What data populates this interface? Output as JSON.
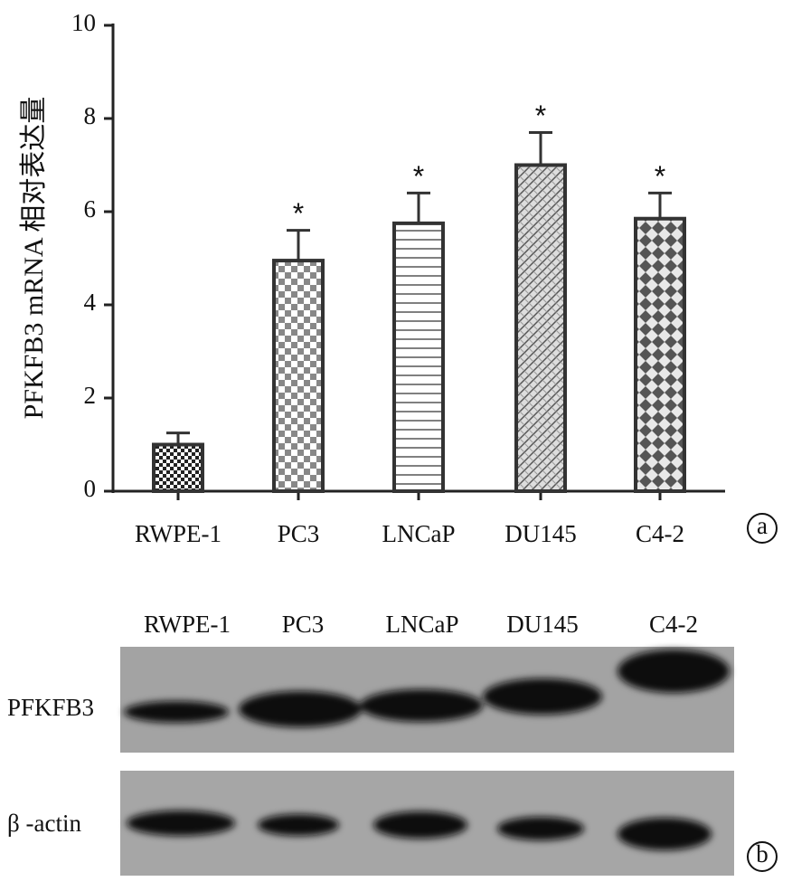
{
  "chart_data": {
    "type": "bar",
    "y_label": "PFKFB3 mRNA 相对表达量",
    "categories": [
      "RWPE-1",
      "PC3",
      "LNCaP",
      "DU145",
      "C4-2"
    ],
    "values": [
      1.0,
      4.95,
      5.75,
      7.0,
      5.85
    ],
    "errors": [
      0.25,
      0.65,
      0.65,
      0.7,
      0.55
    ],
    "annotations": [
      null,
      "*",
      "*",
      "*",
      "*"
    ],
    "patterns": [
      "checker-small",
      "checker",
      "horizontal",
      "diagonal",
      "crosshatch"
    ],
    "color": "#333333",
    "ylim": [
      0,
      10
    ],
    "yticks": [
      0,
      2,
      4,
      6,
      8,
      10
    ],
    "panel_label": "a"
  },
  "blot": {
    "lanes": [
      "RWPE-1",
      "PC3",
      "LNCaP",
      "DU145",
      "C4-2"
    ],
    "rows": [
      "PFKFB3",
      "β -actin"
    ],
    "panel_label": "b"
  }
}
